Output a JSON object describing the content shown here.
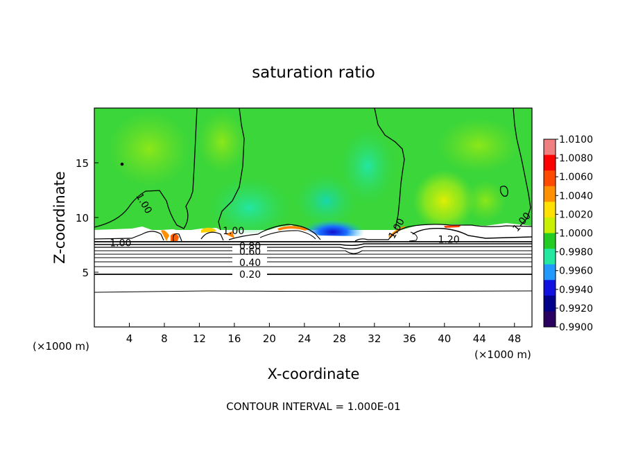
{
  "chart_data": {
    "type": "heatmap",
    "title": "saturation ratio",
    "xlabel": "X-coordinate",
    "ylabel": "Z-coordinate",
    "x_unit_label": "(×1000 m)",
    "y_unit_label": "(×1000 m)",
    "footer": "CONTOUR INTERVAL = 1.000E-01",
    "xlim": [
      0,
      50
    ],
    "ylim": [
      0,
      20
    ],
    "x_ticks": [
      4,
      8,
      12,
      16,
      20,
      24,
      28,
      32,
      36,
      40,
      44,
      48
    ],
    "x_tick_labels": [
      "4",
      "8",
      "12",
      "16",
      "20",
      "24",
      "28",
      "32",
      "36",
      "40",
      "44",
      "48"
    ],
    "y_ticks": [
      5,
      10,
      15
    ],
    "y_tick_labels": [
      "5",
      "10",
      "15"
    ],
    "colorbar": {
      "min": 0.99,
      "max": 1.01,
      "labels": [
        "1.0100",
        "1.0080",
        "1.0060",
        "1.0040",
        "1.0020",
        "1.0000",
        "0.9980",
        "0.9960",
        "0.9940",
        "0.9920",
        "0.9900"
      ],
      "colors": [
        "#f08080",
        "#ff0000",
        "#ff4a00",
        "#ff9000",
        "#ffe000",
        "#c8f000",
        "#22cc22",
        "#22e8a0",
        "#2299ff",
        "#1010e0",
        "#00008a",
        "#2a0060"
      ]
    },
    "contour_labels": [
      {
        "text": "1.00",
        "x": 5.7,
        "y": 11.3,
        "rotate": 60
      },
      {
        "text": "1.00",
        "x": 3.0,
        "y": 7.7,
        "rotate": 0
      },
      {
        "text": "1.00",
        "x": 15.9,
        "y": 8.8,
        "rotate": 0
      },
      {
        "text": "1.00",
        "x": 34.5,
        "y": 9.0,
        "rotate": -60
      },
      {
        "text": "1.00",
        "x": 48.8,
        "y": 9.6,
        "rotate": -50
      },
      {
        "text": "1.20",
        "x": 40.5,
        "y": 8.0,
        "rotate": 0
      },
      {
        "text": "0.80",
        "x": 17.8,
        "y": 7.4,
        "rotate": 0
      },
      {
        "text": "0.60",
        "x": 17.8,
        "y": 6.9,
        "rotate": 0
      },
      {
        "text": "0.40",
        "x": 17.8,
        "y": 5.9,
        "rotate": 0
      },
      {
        "text": "0.20",
        "x": 17.8,
        "y": 4.8,
        "rotate": 0
      }
    ]
  }
}
